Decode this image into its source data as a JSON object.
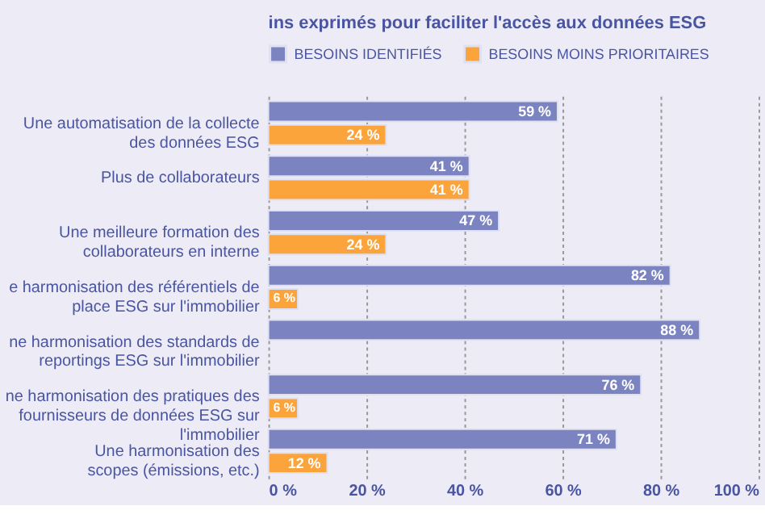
{
  "chart_data": {
    "type": "bar",
    "orientation": "horizontal",
    "title": "ins exprimés pour faciliter l'accès aux données ESG",
    "categories": [
      "Une automatisation de la collecte\ndes données ESG",
      "Plus de collaborateurs",
      "Une meilleure formation des\ncollaborateurs en interne",
      "e harmonisation des référentiels de\nplace ESG sur l'immobilier",
      "ne harmonisation des standards de\nreportings ESG sur l'immobilier",
      "ne harmonisation des pratiques des\nfournisseurs de données ESG sur\nl'immobilier",
      "Une harmonisation des\nscopes (émissions, etc.)"
    ],
    "series": [
      {
        "name": "BESOINS IDENTIFIÉS",
        "color": "#7b83c1",
        "values": [
          59,
          41,
          47,
          82,
          88,
          76,
          71
        ],
        "value_labels": [
          "59 %",
          "41 %",
          "47 %",
          "82 %",
          "88 %",
          "76 %",
          "71 %"
        ]
      },
      {
        "name": "BESOINS MOINS PRIORITAIRES",
        "color": "#fca43c",
        "values": [
          24,
          41,
          24,
          6,
          null,
          6,
          12
        ],
        "value_labels": [
          "24 %",
          "41 %",
          "24 %",
          "6 %",
          null,
          "6 %",
          "12 %"
        ]
      }
    ],
    "xlim": [
      0,
      100
    ],
    "xticks": [
      {
        "value": 0,
        "label": "0 %"
      },
      {
        "value": 20,
        "label": "20 %"
      },
      {
        "value": 40,
        "label": "40 %"
      },
      {
        "value": 60,
        "label": "60 %"
      },
      {
        "value": 80,
        "label": "80 %"
      },
      {
        "value": 100,
        "label": "100 %"
      }
    ],
    "grid": "x",
    "legend": "top"
  }
}
